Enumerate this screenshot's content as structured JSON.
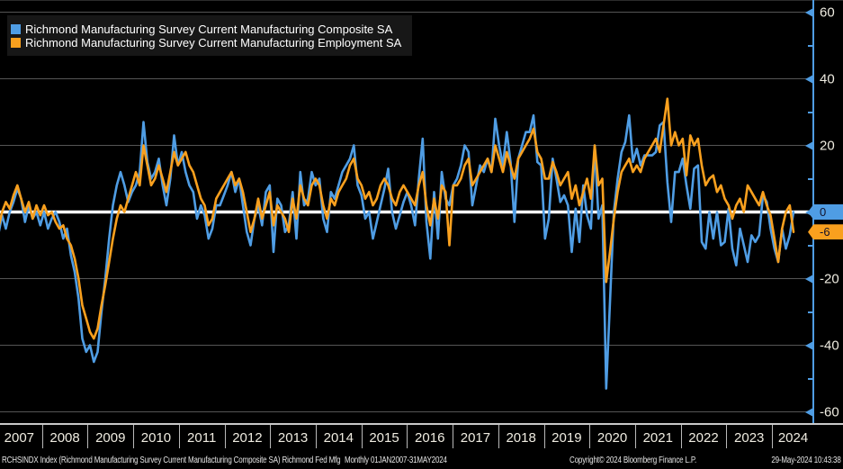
{
  "colors": {
    "background": "#000000",
    "composite_line": "#4f9de4",
    "employment_line": "#f9a01e",
    "grid_line": "#555555",
    "zero_line": "#ffffff",
    "axis_line": "#4f9de4",
    "tick_label": "#efece1",
    "badge_composite_bg": "#4f9de4",
    "badge_employment_bg": "#f9a01e",
    "badge_text": "#13132b",
    "legend_bg": "#171717"
  },
  "legend": {
    "items": [
      {
        "label": "Richmond Manufacturing Survey Current Manufacturing Composite SA",
        "color": "#4f9de4"
      },
      {
        "label": "Richmond Manufacturing Survey Current Manufacturing Employment SA",
        "color": "#f9a01e"
      }
    ]
  },
  "y_axis": {
    "major_ticks": [
      60,
      40,
      20,
      0,
      -20,
      -40,
      -60
    ],
    "minor_ticks": [
      50,
      30,
      10,
      -10,
      -30,
      -50
    ],
    "badges": [
      {
        "value": "0",
        "series": "composite"
      },
      {
        "value": "-6",
        "series": "employment"
      }
    ]
  },
  "x_axis": {
    "years": [
      "2007",
      "2008",
      "2009",
      "2010",
      "2011",
      "2012",
      "2013",
      "2014",
      "2015",
      "2016",
      "2017",
      "2018",
      "2019",
      "2020",
      "2021",
      "2022",
      "2023",
      "2024"
    ]
  },
  "footer": {
    "description": "RCHSINDX Index (Richmond Manufacturing Survey Current Manufacturing Composite SA) Richmond Fed Mfg",
    "period": "Monthly 01JAN2007-31MAY2024",
    "copyright": "Copyright© 2024 Bloomberg Finance L.P.",
    "timestamp": "29-May-2024 10:43:38"
  },
  "chart_data": {
    "type": "line",
    "frequency": "monthly",
    "x_start": "2007-01",
    "x_end": "2024-05",
    "ylim": [
      -63,
      64
    ],
    "grid": "horizontal, every 20",
    "legend_position": "top-left",
    "zero_line": true,
    "series": [
      {
        "name": "Richmond Manufacturing Survey Current Manufacturing Composite SA",
        "color": "#4f9de4",
        "last_value": 0,
        "values": [
          -7,
          -1,
          -5,
          0,
          3,
          7,
          4,
          -3,
          2,
          -2,
          0,
          -4,
          0,
          -5,
          -2,
          0,
          -3,
          -8,
          -5,
          -13,
          -18,
          -26,
          -38,
          -42,
          -40,
          -45,
          -42,
          -30,
          -20,
          -8,
          2,
          8,
          12,
          8,
          3,
          6,
          8,
          12,
          27,
          15,
          10,
          12,
          16,
          8,
          2,
          10,
          23,
          14,
          18,
          12,
          8,
          6,
          -2,
          2,
          -1,
          -8,
          -5,
          2,
          2,
          5,
          8,
          12,
          6,
          10,
          2,
          -6,
          -10,
          -2,
          2,
          -4,
          6,
          8,
          -12,
          4,
          2,
          -6,
          -4,
          6,
          -8,
          12,
          2,
          4,
          12,
          8,
          10,
          -2,
          -6,
          6,
          4,
          8,
          12,
          14,
          16,
          20,
          8,
          5,
          -2,
          0,
          -8,
          -3,
          2,
          7,
          13,
          0,
          -5,
          -1,
          3,
          6,
          2,
          -4,
          10,
          22,
          -3,
          -14,
          6,
          -8,
          12,
          4,
          2,
          8,
          10,
          14,
          20,
          18,
          2,
          8,
          14,
          12,
          16,
          12,
          28,
          20,
          14,
          24,
          15,
          -3,
          16,
          20,
          24,
          24,
          29,
          15,
          14,
          -8,
          -2,
          16,
          10,
          3,
          5,
          2,
          -12,
          1,
          -9,
          8,
          -1,
          -5,
          20,
          -2,
          2,
          -53,
          -27,
          0,
          10,
          18,
          21,
          29,
          15,
          19,
          14,
          17,
          17,
          17,
          18,
          26,
          27,
          9,
          -3,
          12,
          12,
          16,
          8,
          1,
          13,
          14,
          -9,
          -11,
          0,
          -8,
          0,
          -10,
          -9,
          1,
          -11,
          -16,
          -5,
          -10,
          -15,
          -7,
          -9,
          -7,
          5,
          3,
          -5,
          -11,
          -15,
          -5,
          -11,
          -7,
          0
        ]
      },
      {
        "name": "Richmond Manufacturing Survey Current Manufacturing Employment SA",
        "color": "#f9a01e",
        "last_value": -6,
        "values": [
          -5,
          0,
          3,
          1,
          5,
          8,
          4,
          0,
          3,
          -2,
          2,
          -1,
          2,
          -1,
          0,
          -3,
          -5,
          -4,
          -8,
          -10,
          -14,
          -20,
          -28,
          -32,
          -36,
          -38,
          -35,
          -28,
          -22,
          -15,
          -8,
          -2,
          2,
          0,
          4,
          8,
          12,
          8,
          20,
          14,
          8,
          10,
          14,
          10,
          6,
          12,
          18,
          14,
          16,
          18,
          14,
          12,
          8,
          4,
          2,
          -4,
          -2,
          4,
          6,
          8,
          10,
          12,
          8,
          10,
          6,
          0,
          -6,
          -2,
          4,
          -2,
          2,
          6,
          -4,
          2,
          0,
          -2,
          -6,
          4,
          -2,
          8,
          4,
          2,
          8,
          10,
          8,
          2,
          -2,
          4,
          2,
          6,
          8,
          10,
          14,
          16,
          10,
          8,
          4,
          6,
          2,
          4,
          8,
          10,
          8,
          4,
          2,
          6,
          8,
          6,
          4,
          2,
          8,
          12,
          2,
          -4,
          4,
          -2,
          8,
          6,
          -10,
          8,
          8,
          10,
          14,
          16,
          8,
          10,
          12,
          14,
          16,
          12,
          20,
          16,
          12,
          18,
          14,
          10,
          16,
          18,
          20,
          22,
          25,
          18,
          16,
          10,
          10,
          15,
          12,
          8,
          10,
          12,
          4,
          8,
          2,
          6,
          10,
          4,
          20,
          8,
          10,
          -21,
          -12,
          -2,
          6,
          12,
          14,
          16,
          12,
          14,
          12,
          16,
          18,
          20,
          22,
          18,
          26,
          34,
          20,
          24,
          20,
          22,
          11,
          23,
          20,
          22,
          14,
          8,
          10,
          11,
          6,
          8,
          4,
          2,
          -2,
          2,
          4,
          0,
          8,
          6,
          4,
          2,
          6,
          2,
          -1,
          -8,
          -15,
          -5,
          0,
          2,
          -6
        ]
      }
    ]
  }
}
